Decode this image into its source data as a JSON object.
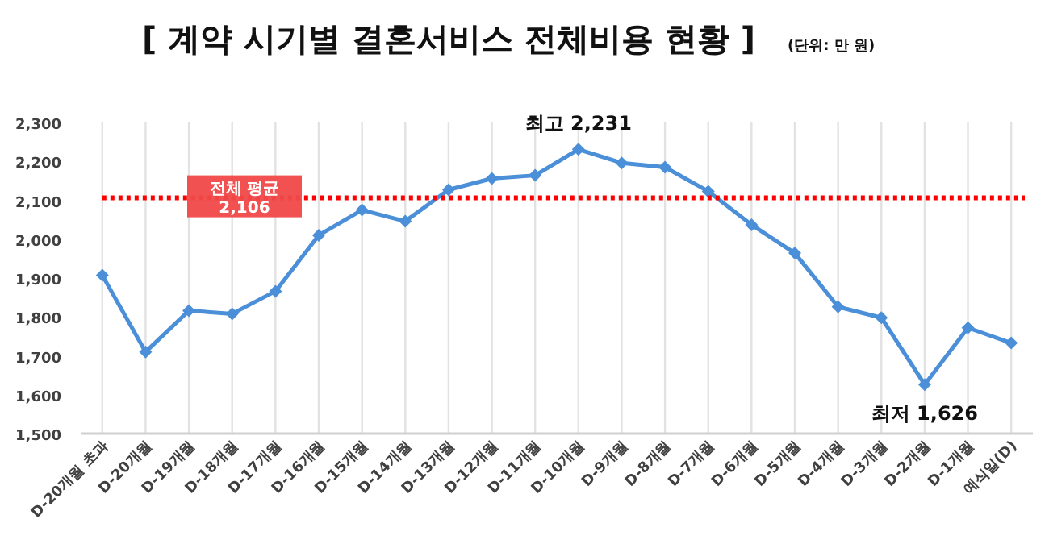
{
  "chart_data": {
    "type": "line",
    "title": "[ 계약 시기별 결혼서비스 전체비용 현황 ]",
    "subtitle": "(단위: 만 원)",
    "categories": [
      "D-20개월 초과",
      "D-20개월",
      "D-19개월",
      "D-18개월",
      "D-17개월",
      "D-16개월",
      "D-15개월",
      "D-14개월",
      "D-13개월",
      "D-12개월",
      "D-11개월",
      "D-10개월",
      "D-9개월",
      "D-8개월",
      "D-7개월",
      "D-6개월",
      "D-5개월",
      "D-4개월",
      "D-3개월",
      "D-2개월",
      "D-1개월",
      "예식일(D)"
    ],
    "series": [
      {
        "color": "#4a8fd8",
        "values": [
          1907,
          1710,
          1816,
          1808,
          1866,
          2010,
          2075,
          2046,
          2127,
          2156,
          2164,
          2231,
          2196,
          2185,
          2123,
          2037,
          1964,
          1826,
          1798,
          1626,
          1772,
          1733
        ]
      }
    ],
    "ylim": [
      1500,
      2300
    ],
    "yticks": [
      {
        "value": 1500,
        "label": "1,500"
      },
      {
        "value": 1600,
        "label": "1,600"
      },
      {
        "value": 1700,
        "label": "1,700"
      },
      {
        "value": 1800,
        "label": "1,800"
      },
      {
        "value": 1900,
        "label": "1,900"
      },
      {
        "value": 2000,
        "label": "2,000"
      },
      {
        "value": 2100,
        "label": "2,100"
      },
      {
        "value": 2200,
        "label": "2,200"
      },
      {
        "value": 2300,
        "label": "2,300"
      }
    ],
    "ref_lines": [
      {
        "axis": "y",
        "value": 2106,
        "label": "전체 평균 2,106",
        "color": "#ff0000",
        "line_style": "dotted"
      }
    ],
    "annotations": [
      {
        "text": "최고 2,231",
        "x": "D-10개월",
        "y": 2231
      },
      {
        "text": "최저 1,626",
        "x": "D-2개월",
        "y": 1626
      }
    ],
    "marker": "diamond",
    "grid": "x"
  }
}
